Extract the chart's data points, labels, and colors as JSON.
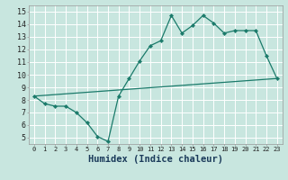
{
  "title": "",
  "xlabel": "Humidex (Indice chaleur)",
  "ylabel": "",
  "background_color": "#c8e6df",
  "grid_color": "#ffffff",
  "line_color": "#1a7a6a",
  "xlim": [
    -0.5,
    23.5
  ],
  "ylim": [
    4.5,
    15.5
  ],
  "xticks": [
    0,
    1,
    2,
    3,
    4,
    5,
    6,
    7,
    8,
    9,
    10,
    11,
    12,
    13,
    14,
    15,
    16,
    17,
    18,
    19,
    20,
    21,
    22,
    23
  ],
  "yticks": [
    5,
    6,
    7,
    8,
    9,
    10,
    11,
    12,
    13,
    14,
    15
  ],
  "curve1_x": [
    0,
    1,
    2,
    3,
    4,
    5,
    6,
    7,
    8,
    9,
    10,
    11,
    12,
    13,
    14,
    15,
    16,
    17,
    18,
    19,
    20,
    21,
    22,
    23
  ],
  "curve1_y": [
    8.3,
    7.7,
    7.5,
    7.5,
    7.0,
    6.2,
    5.1,
    4.7,
    8.3,
    9.7,
    11.1,
    12.3,
    12.7,
    14.7,
    13.3,
    13.9,
    14.7,
    14.1,
    13.3,
    13.5,
    13.5,
    13.5,
    11.5,
    9.7
  ],
  "curve2_x": [
    0,
    23
  ],
  "curve2_y": [
    8.3,
    9.7
  ],
  "xlabel_fontsize": 7.5,
  "tick_fontsize_x": 5.0,
  "tick_fontsize_y": 6.0
}
